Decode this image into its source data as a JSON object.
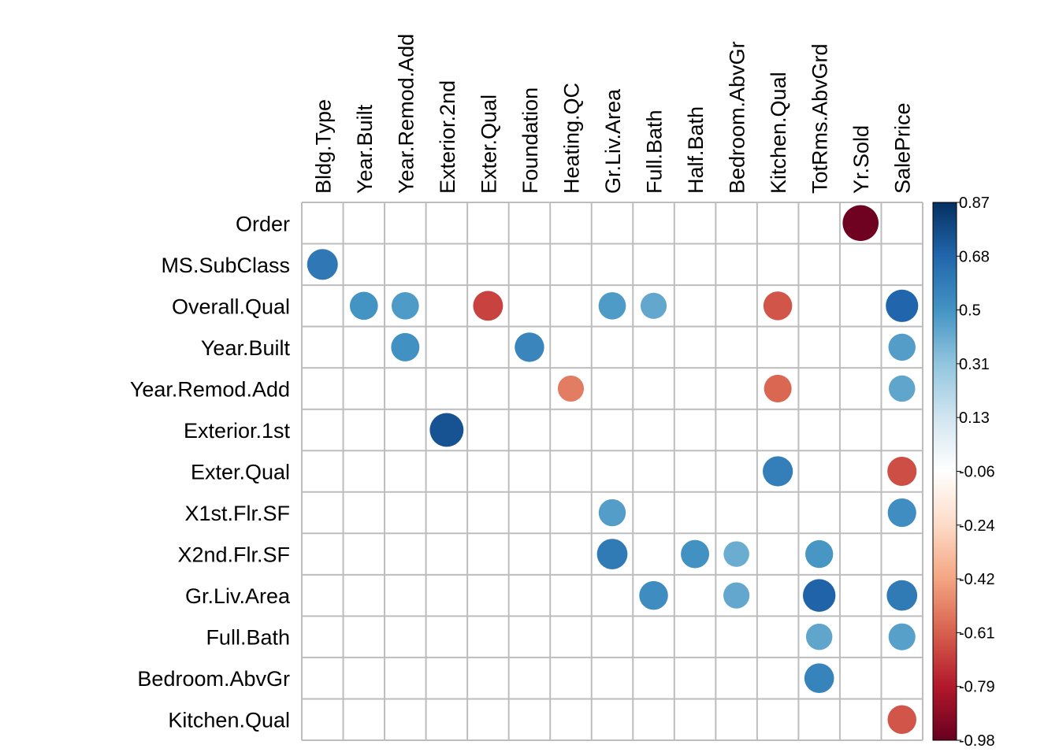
{
  "chart_data": {
    "type": "heatmap",
    "title": "",
    "columns": [
      "Bldg.Type",
      "Year.Built",
      "Year.Remod.Add",
      "Exterior.2nd",
      "Exter.Qual",
      "Foundation",
      "Heating.QC",
      "Gr.Liv.Area",
      "Full.Bath",
      "Half.Bath",
      "Bedroom.AbvGr",
      "Kitchen.Qual",
      "TotRms.AbvGrd",
      "Yr.Sold",
      "SalePrice"
    ],
    "rows": [
      "Order",
      "MS.SubClass",
      "Overall.Qual",
      "Year.Built",
      "Year.Remod.Add",
      "Exterior.1st",
      "Exter.Qual",
      "X1st.Flr.SF",
      "X2nd.Flr.SF",
      "Gr.Liv.Area",
      "Full.Bath",
      "Bedroom.AbvGr",
      "Kitchen.Qual"
    ],
    "cells": [
      {
        "row": "Order",
        "col": "Yr.Sold",
        "value": -0.98
      },
      {
        "row": "MS.SubClass",
        "col": "Bldg.Type",
        "value": 0.72
      },
      {
        "row": "Overall.Qual",
        "col": "Year.Built",
        "value": 0.6
      },
      {
        "row": "Overall.Qual",
        "col": "Year.Remod.Add",
        "value": 0.57
      },
      {
        "row": "Overall.Qual",
        "col": "Exter.Qual",
        "value": -0.68
      },
      {
        "row": "Overall.Qual",
        "col": "Gr.Liv.Area",
        "value": 0.57
      },
      {
        "row": "Overall.Qual",
        "col": "Full.Bath",
        "value": 0.52
      },
      {
        "row": "Overall.Qual",
        "col": "Kitchen.Qual",
        "value": -0.63
      },
      {
        "row": "Overall.Qual",
        "col": "SalePrice",
        "value": 0.8
      },
      {
        "row": "Year.Built",
        "col": "Year.Remod.Add",
        "value": 0.61
      },
      {
        "row": "Year.Built",
        "col": "Foundation",
        "value": 0.66
      },
      {
        "row": "Year.Built",
        "col": "SalePrice",
        "value": 0.56
      },
      {
        "row": "Year.Remod.Add",
        "col": "Heating.QC",
        "value": -0.52
      },
      {
        "row": "Year.Remod.Add",
        "col": "Kitchen.Qual",
        "value": -0.58
      },
      {
        "row": "Year.Remod.Add",
        "col": "SalePrice",
        "value": 0.53
      },
      {
        "row": "Exterior.1st",
        "col": "Exterior.2nd",
        "value": 0.87
      },
      {
        "row": "Exter.Qual",
        "col": "Kitchen.Qual",
        "value": 0.69
      },
      {
        "row": "Exter.Qual",
        "col": "SalePrice",
        "value": -0.65
      },
      {
        "row": "X1st.Flr.SF",
        "col": "Gr.Liv.Area",
        "value": 0.56
      },
      {
        "row": "X1st.Flr.SF",
        "col": "SalePrice",
        "value": 0.62
      },
      {
        "row": "X2nd.Flr.SF",
        "col": "Gr.Liv.Area",
        "value": 0.71
      },
      {
        "row": "X2nd.Flr.SF",
        "col": "Half.Bath",
        "value": 0.61
      },
      {
        "row": "X2nd.Flr.SF",
        "col": "Bedroom.AbvGr",
        "value": 0.5
      },
      {
        "row": "X2nd.Flr.SF",
        "col": "TotRms.AbvGrd",
        "value": 0.59
      },
      {
        "row": "Gr.Liv.Area",
        "col": "Full.Bath",
        "value": 0.63
      },
      {
        "row": "Gr.Liv.Area",
        "col": "Bedroom.AbvGr",
        "value": 0.52
      },
      {
        "row": "Gr.Liv.Area",
        "col": "TotRms.AbvGrd",
        "value": 0.81
      },
      {
        "row": "Gr.Liv.Area",
        "col": "SalePrice",
        "value": 0.71
      },
      {
        "row": "Full.Bath",
        "col": "TotRms.AbvGrd",
        "value": 0.53
      },
      {
        "row": "Full.Bath",
        "col": "SalePrice",
        "value": 0.55
      },
      {
        "row": "Bedroom.AbvGr",
        "col": "TotRms.AbvGrd",
        "value": 0.67
      },
      {
        "row": "Kitchen.Qual",
        "col": "SalePrice",
        "value": -0.63
      }
    ],
    "colorbar": {
      "min": -0.98,
      "max": 0.87,
      "ticks": [
        "0.87",
        "0.68",
        "0.5",
        "0.31",
        "0.13",
        "-0.06",
        "-0.24",
        "-0.42",
        "-0.61",
        "-0.79",
        "-0.98"
      ]
    },
    "color_scale": [
      "#67001F",
      "#B2182B",
      "#D6604D",
      "#F4A582",
      "#FDDBC7",
      "#FFFFFF",
      "#D1E5F0",
      "#92C5DE",
      "#4393C3",
      "#2166AC",
      "#053061"
    ],
    "grid": true,
    "legend_position": "right"
  }
}
